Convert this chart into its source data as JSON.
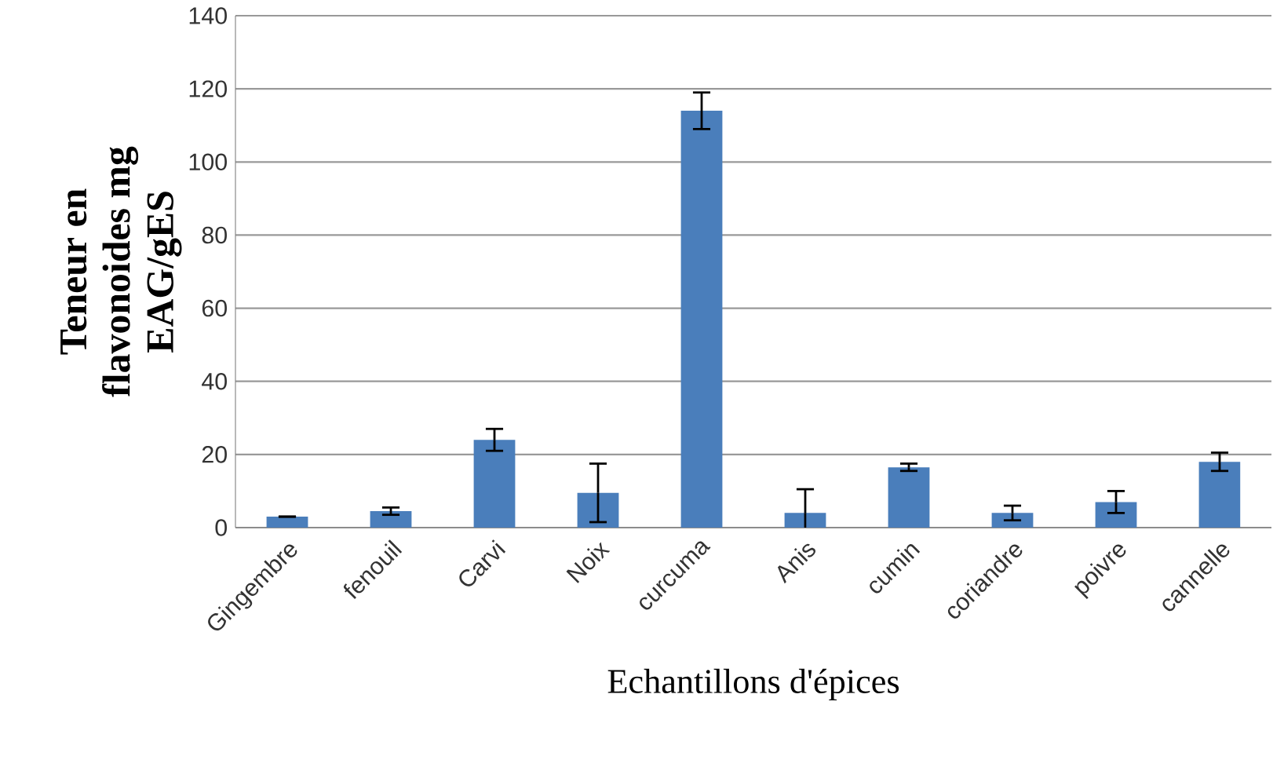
{
  "chart_data": {
    "type": "bar",
    "xlabel": "Echantillons d'épices",
    "ylabel": "Teneur en flavonoides mg EAG/gES",
    "categories": [
      "Gingembre",
      "fenouil",
      "Carvi",
      "Noix",
      "curcuma",
      "Anis",
      "cumin",
      "coriandre",
      "poivre",
      "cannelle"
    ],
    "values": [
      3,
      4.5,
      24,
      9.5,
      114,
      4,
      16.5,
      4,
      7,
      18
    ],
    "errors": [
      null,
      1,
      3,
      8,
      5,
      6.5,
      1,
      2,
      3,
      2.5
    ],
    "color": "#4a7ebb",
    "ylim": [
      0,
      140
    ],
    "yticks": [
      0,
      20,
      40,
      60,
      80,
      100,
      120,
      140
    ],
    "grid": "y"
  }
}
